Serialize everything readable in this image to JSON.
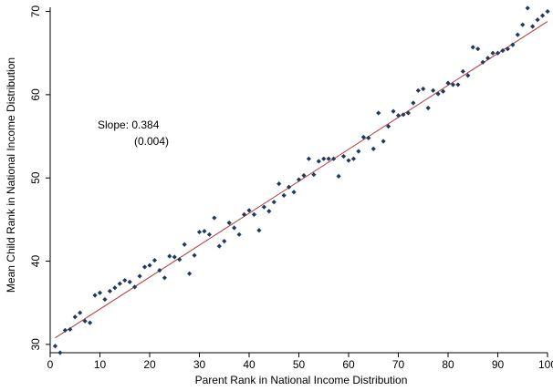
{
  "chart_data": {
    "type": "scatter",
    "xlabel": "Parent Rank in National Income Distribution",
    "ylabel": "Mean Child Rank in National Income Distribution",
    "xlim": [
      0,
      100
    ],
    "ylim": [
      29,
      70.5
    ],
    "xticks": [
      "0",
      "10",
      "20",
      "30",
      "40",
      "50",
      "60",
      "70",
      "80",
      "90",
      "100"
    ],
    "yticks": [
      "30",
      "40",
      "50",
      "60",
      "70"
    ],
    "grid": false,
    "legend": "none",
    "annotation": {
      "line1": "Slope: 0.384",
      "line2": "(0.004)"
    },
    "fit_line": {
      "intercept": 30.4,
      "slope": 0.384,
      "color": "#b03a3a"
    },
    "marker_color": "#1f3a5f",
    "series": [
      {
        "x": [
          1,
          2,
          3,
          4,
          5,
          6,
          7,
          8,
          9,
          10,
          11,
          12,
          13,
          14,
          15,
          16,
          17,
          18,
          19,
          20,
          21,
          22,
          23,
          24,
          25,
          26,
          27,
          28,
          29,
          30,
          31,
          32,
          33,
          34,
          35,
          36,
          37,
          38,
          39,
          40,
          41,
          42,
          43,
          44,
          45,
          46,
          47,
          48,
          49,
          50,
          51,
          52,
          53,
          54,
          55,
          56,
          57,
          58,
          59,
          60,
          61,
          62,
          63,
          64,
          65,
          66,
          67,
          68,
          69,
          70,
          71,
          72,
          73,
          74,
          75,
          76,
          77,
          78,
          79,
          80,
          81,
          82,
          83,
          84,
          85,
          86,
          87,
          88,
          89,
          90,
          91,
          92,
          93,
          94,
          95,
          96,
          97,
          98,
          99,
          100
        ],
        "values": [
          29.8,
          29.0,
          31.7,
          31.8,
          33.3,
          33.8,
          32.8,
          32.6,
          35.9,
          36.2,
          35.4,
          36.4,
          36.8,
          37.3,
          37.7,
          37.5,
          36.9,
          38.2,
          39.3,
          39.5,
          40.1,
          38.9,
          38.0,
          40.6,
          40.5,
          40.2,
          42.0,
          38.5,
          40.7,
          43.5,
          43.6,
          43.2,
          45.2,
          41.8,
          42.4,
          44.6,
          44.0,
          43.2,
          45.6,
          46.1,
          45.6,
          43.7,
          46.5,
          46.0,
          47.1,
          49.3,
          47.9,
          48.9,
          48.3,
          49.8,
          50.3,
          52.3,
          50.4,
          52.0,
          52.3,
          52.3,
          52.3,
          50.2,
          52.6,
          52.1,
          52.3,
          53.2,
          54.9,
          54.8,
          53.5,
          57.8,
          54.4,
          56.2,
          58.0,
          57.5,
          57.6,
          57.8,
          59.0,
          60.5,
          60.7,
          58.4,
          60.5,
          60.1,
          60.4,
          61.4,
          61.2,
          61.2,
          62.8,
          62.3,
          65.7,
          65.5,
          63.9,
          64.4,
          65.0,
          65.0,
          65.3,
          65.5,
          66.0,
          67.2,
          68.4,
          70.4,
          68.2,
          69.0,
          69.5,
          70.0
        ]
      }
    ]
  }
}
